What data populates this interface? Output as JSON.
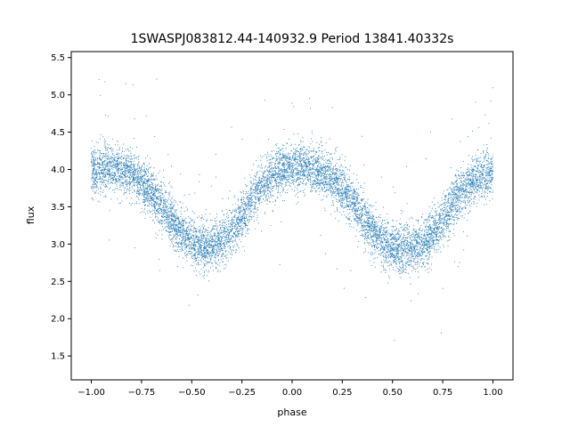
{
  "chart_data": {
    "type": "scatter",
    "title": "1SWASPJ083812.44-140932.9 Period 13841.40332s",
    "xlabel": "phase",
    "ylabel": "flux",
    "xlim": [
      -1.1,
      1.1
    ],
    "ylim": [
      1.18,
      5.58
    ],
    "xticks": [
      -1.0,
      -0.75,
      -0.5,
      -0.25,
      0.0,
      0.25,
      0.5,
      0.75,
      1.0
    ],
    "xtick_labels": [
      "−1.00",
      "−0.75",
      "−0.50",
      "−0.25",
      "0.00",
      "0.25",
      "0.50",
      "0.75",
      "1.00"
    ],
    "yticks": [
      1.5,
      2.0,
      2.5,
      3.0,
      3.5,
      4.0,
      4.5,
      5.0,
      5.5
    ],
    "ytick_labels": [
      "1.5",
      "2.0",
      "2.5",
      "3.0",
      "3.5",
      "4.0",
      "4.5",
      "5.0",
      "5.5"
    ],
    "grid": false,
    "series": [
      {
        "color": "#1f77b4",
        "marker": "dot",
        "x": [
          -1.0,
          -0.95,
          -0.9,
          -0.85,
          -0.8,
          -0.75,
          -0.7,
          -0.65,
          -0.6,
          -0.55,
          -0.5,
          -0.45,
          -0.4,
          -0.35,
          -0.3,
          -0.25,
          -0.2,
          -0.15,
          -0.1,
          -0.05,
          0.0,
          0.05,
          0.1,
          0.15,
          0.2,
          0.25,
          0.3,
          0.35,
          0.4,
          0.45,
          0.5,
          0.55,
          0.6,
          0.65,
          0.7,
          0.75,
          0.8,
          0.85,
          0.9,
          0.95,
          1.0
        ],
        "y": [
          3.95,
          4.02,
          4.03,
          4.0,
          3.95,
          3.83,
          3.68,
          3.52,
          3.33,
          3.15,
          3.02,
          2.96,
          2.97,
          3.04,
          3.18,
          3.38,
          3.6,
          3.79,
          3.93,
          4.01,
          4.03,
          4.04,
          4.02,
          3.97,
          3.88,
          3.74,
          3.56,
          3.36,
          3.18,
          3.04,
          2.96,
          2.94,
          2.96,
          3.02,
          3.14,
          3.32,
          3.54,
          3.72,
          3.85,
          3.93,
          3.97
        ]
      }
    ]
  }
}
